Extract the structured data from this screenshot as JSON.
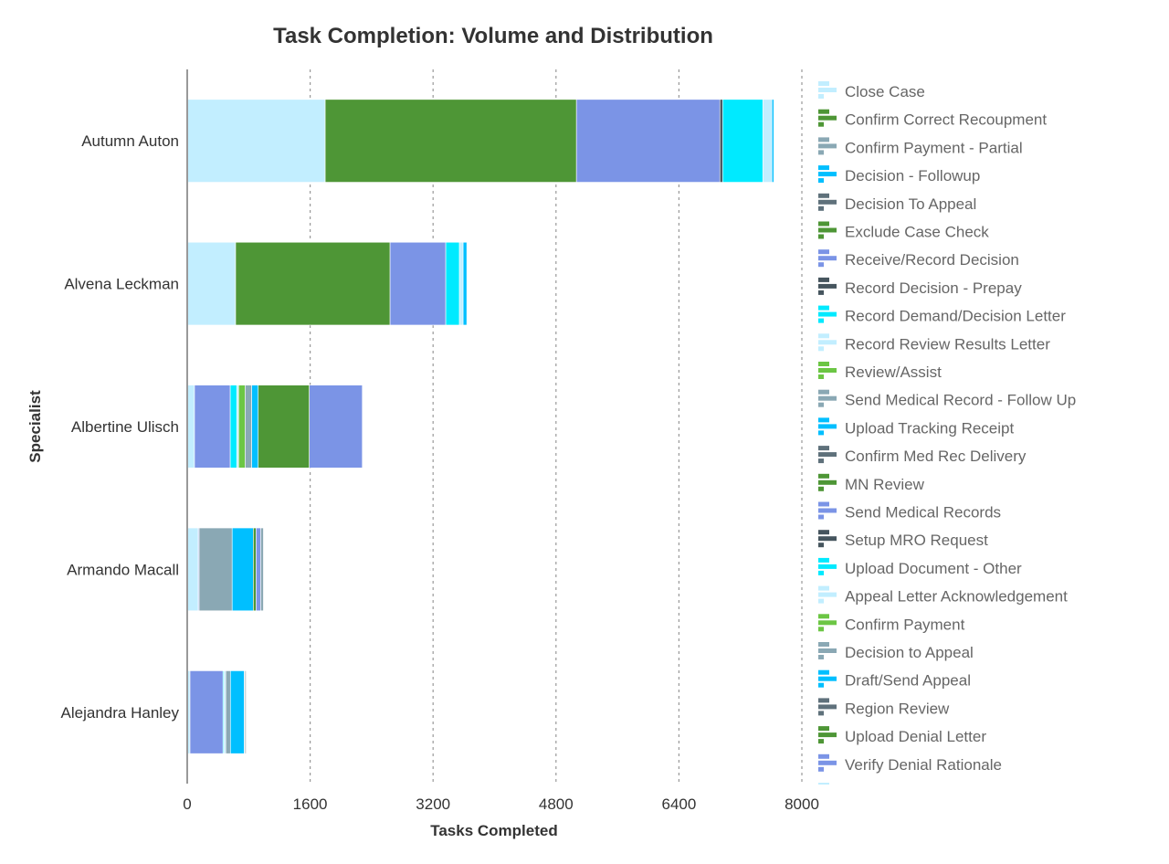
{
  "chart_data": {
    "type": "bar",
    "orientation": "horizontal",
    "stacked": true,
    "title": "Task Completion: Volume and Distribution",
    "xlabel": "Tasks Completed",
    "ylabel": "Specialist",
    "xlim": [
      0,
      8000
    ],
    "xticks": [
      0,
      1600,
      3200,
      4800,
      6400,
      8000
    ],
    "grid": true,
    "legend_position": "right",
    "categories": [
      "Autumn Auton",
      "Alvena Leckman",
      "Albertine Ulisch",
      "Armando Macall",
      "Alejandra Hanley"
    ],
    "series": [
      {
        "name": "Close Case",
        "color": "#c2eeff",
        "values": [
          1796,
          630,
          95,
          143,
          36
        ]
      },
      {
        "name": "Confirm Correct Recoupment",
        "color": "#4e9636",
        "values": [
          3270,
          2010,
          0,
          0,
          0
        ]
      },
      {
        "name": "Confirm Payment - Partial",
        "color": "#8aa8b4",
        "values": [
          0,
          0,
          0,
          0,
          0
        ]
      },
      {
        "name": "Decision - Followup",
        "color": "#00bfff",
        "values": [
          0,
          0,
          0,
          0,
          0
        ]
      },
      {
        "name": "Decision To Appeal",
        "color": "#5f717b",
        "values": [
          0,
          0,
          0,
          0,
          0
        ]
      },
      {
        "name": "Exclude Case Check",
        "color": "#4e9636",
        "values": [
          0,
          0,
          0,
          0,
          0
        ]
      },
      {
        "name": "Receive/Record Decision",
        "color": "#7b94e6",
        "values": [
          1867,
          725,
          465,
          12,
          430
        ]
      },
      {
        "name": "Record Decision - Prepay",
        "color": "#46555e",
        "values": [
          36,
          0,
          0,
          0,
          0
        ]
      },
      {
        "name": "Record Demand/Decision Letter",
        "color": "#00eaff",
        "values": [
          523,
          178,
          85,
          0,
          12
        ]
      },
      {
        "name": "Record Review Results Letter",
        "color": "#c2eeff",
        "values": [
          119,
          48,
          24,
          0,
          24
        ]
      },
      {
        "name": "Review/Assist",
        "color": "#6cc644",
        "values": [
          0,
          0,
          85,
          0,
          0
        ]
      },
      {
        "name": "Send Medical Record - Follow Up",
        "color": "#8aa8b4",
        "values": [
          0,
          0,
          85,
          430,
          60
        ]
      },
      {
        "name": "Upload Tracking Receipt",
        "color": "#00bfff",
        "values": [
          24,
          48,
          85,
          275,
          180
        ]
      },
      {
        "name": "Confirm Med Rec Delivery",
        "color": "#5f717b",
        "values": [
          0,
          0,
          0,
          0,
          0
        ]
      },
      {
        "name": "MN Review",
        "color": "#4e9636",
        "values": [
          0,
          0,
          665,
          36,
          0
        ]
      },
      {
        "name": "Send Medical Records",
        "color": "#7b94e6",
        "values": [
          0,
          0,
          690,
          60,
          0
        ]
      },
      {
        "name": "Setup MRO Request",
        "color": "#46555e",
        "values": [
          0,
          0,
          0,
          0,
          0
        ]
      },
      {
        "name": "Upload Document - Other",
        "color": "#00eaff",
        "values": [
          0,
          0,
          0,
          0,
          0
        ]
      },
      {
        "name": "Appeal Letter Acknowledgement",
        "color": "#c2eeff",
        "values": [
          0,
          0,
          0,
          0,
          12
        ]
      },
      {
        "name": "Confirm Payment",
        "color": "#6cc644",
        "values": [
          0,
          0,
          0,
          0,
          0
        ]
      },
      {
        "name": "Decision to Appeal",
        "color": "#8aa8b4",
        "values": [
          0,
          0,
          0,
          36,
          0
        ]
      },
      {
        "name": "Draft/Send Appeal",
        "color": "#00bfff",
        "values": [
          0,
          0,
          0,
          0,
          0
        ]
      },
      {
        "name": "Region Review",
        "color": "#5f717b",
        "values": [
          0,
          0,
          0,
          0,
          12
        ]
      },
      {
        "name": "Upload Denial Letter",
        "color": "#4e9636",
        "values": [
          0,
          0,
          0,
          0,
          0
        ]
      },
      {
        "name": "Verify Denial Rationale",
        "color": "#7b94e6",
        "values": [
          0,
          0,
          0,
          0,
          0
        ]
      }
    ]
  }
}
